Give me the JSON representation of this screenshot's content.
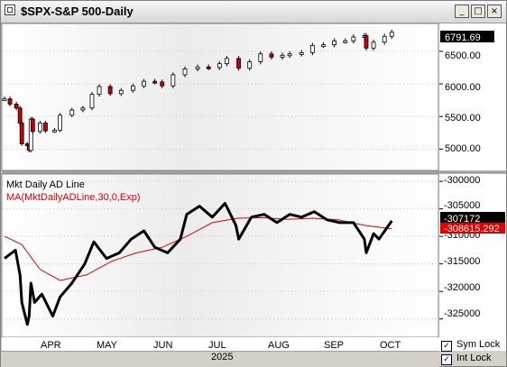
{
  "window": {
    "title": "$SPX-S&P 500-Daily",
    "buttons": {
      "minimize": "_",
      "maximize": "□",
      "close": "×"
    }
  },
  "price_pane": {
    "y_ticks": [
      "6500.00",
      "6000.00",
      "5500.00",
      "5000.00"
    ],
    "last_price_label": "6791.69"
  },
  "indicator_pane": {
    "title": "Mkt Daily AD Line",
    "ma_label": "MA(MktDailyADLine,30,0,Exp)",
    "y_ticks": [
      "-300000",
      "-305000",
      "-310000",
      "-315000",
      "-320000",
      "-325000"
    ],
    "value_label": "-307172",
    "ma_value_label": "-308615.292"
  },
  "x_axis": {
    "months": [
      "APR",
      "MAY",
      "JUN",
      "JUL",
      "AUG",
      "SEP",
      "OCT"
    ],
    "year": "2025"
  },
  "locks": [
    {
      "label": "Sym Lock",
      "checked": true
    },
    {
      "label": "Int Lock",
      "checked": true
    }
  ],
  "colors": {
    "up": "#ffffff",
    "down": "#cc0000",
    "ad_line": "#000000",
    "ma_line": "#e00000",
    "price_tag": "#000000",
    "ma_tag": "#e00000"
  },
  "chart_data": [
    {
      "type": "candlestick",
      "title": "$SPX-S&P 500-Daily",
      "ylim": [
        4700,
        6900
      ],
      "x": [
        "Mar-25",
        "Mar-28",
        "Apr-01",
        "Apr-03",
        "Apr-04",
        "Apr-07",
        "Apr-08",
        "Apr-09",
        "Apr-10",
        "Apr-14",
        "Apr-17",
        "Apr-22",
        "Apr-25",
        "May-01",
        "May-07",
        "May-12",
        "May-16",
        "May-22",
        "May-28",
        "Jun-04",
        "Jun-10",
        "Jun-16",
        "Jun-20",
        "Jun-26",
        "Jul-02",
        "Jul-09",
        "Jul-15",
        "Jul-21",
        "Jul-25",
        "Aug-01",
        "Aug-07",
        "Aug-13",
        "Aug-19",
        "Aug-25",
        "Aug-29",
        "Sep-05",
        "Sep-11",
        "Sep-17",
        "Sep-23",
        "Sep-29",
        "Oct-03",
        "Oct-09",
        "Oct-10",
        "Oct-14",
        "Oct-20",
        "Oct-24"
      ],
      "close": [
        5770,
        5690,
        5630,
        5400,
        5080,
        5060,
        4980,
        5460,
        5270,
        5400,
        5280,
        5290,
        5520,
        5600,
        5630,
        5840,
        5960,
        5850,
        5900,
        5970,
        6040,
        6030,
        5970,
        6140,
        6230,
        6260,
        6250,
        6310,
        6390,
        6240,
        6340,
        6460,
        6410,
        6440,
        6460,
        6480,
        6590,
        6600,
        6660,
        6660,
        6720,
        6740,
        6550,
        6640,
        6730,
        6792
      ]
    },
    {
      "type": "line",
      "title": "Mkt Daily AD Line",
      "ylim": [
        -328000,
        -299000
      ],
      "series": [
        {
          "name": "Mkt Daily AD Line",
          "x": [
            "Mar-25",
            "Mar-31",
            "Apr-03",
            "Apr-04",
            "Apr-07",
            "Apr-08",
            "Apr-09",
            "Apr-11",
            "Apr-15",
            "Apr-21",
            "Apr-25",
            "May-01",
            "May-08",
            "May-13",
            "May-20",
            "May-27",
            "Jun-03",
            "Jun-10",
            "Jun-16",
            "Jun-23",
            "Jun-30",
            "Jul-03",
            "Jul-10",
            "Jul-17",
            "Jul-24",
            "Jul-30",
            "Aug-01",
            "Aug-08",
            "Aug-15",
            "Aug-22",
            "Aug-29",
            "Sep-05",
            "Sep-12",
            "Sep-19",
            "Sep-26",
            "Oct-03",
            "Oct-09",
            "Oct-10",
            "Oct-14",
            "Oct-17",
            "Oct-24"
          ],
          "values": [
            -314000,
            -312500,
            -317000,
            -322000,
            -326000,
            -324500,
            -318500,
            -322000,
            -320500,
            -324500,
            -321000,
            -318500,
            -315000,
            -311000,
            -314000,
            -313000,
            -310500,
            -309000,
            -312000,
            -313000,
            -310500,
            -306000,
            -304500,
            -306500,
            -304000,
            -308000,
            -310500,
            -306500,
            -306000,
            -307500,
            -306000,
            -306500,
            -305500,
            -307000,
            -307500,
            -307500,
            -310500,
            -313000,
            -309500,
            -310500,
            -307172
          ]
        },
        {
          "name": "MA(MktDailyADLine,30,0,Exp)",
          "x": [
            "Mar-25",
            "Apr-04",
            "Apr-14",
            "Apr-25",
            "May-09",
            "May-23",
            "Jun-06",
            "Jun-20",
            "Jul-03",
            "Jul-17",
            "Jul-31",
            "Aug-14",
            "Aug-28",
            "Sep-11",
            "Sep-25",
            "Oct-09",
            "Oct-24"
          ],
          "values": [
            -310000,
            -311500,
            -316000,
            -318000,
            -317000,
            -314500,
            -313000,
            -312000,
            -310000,
            -307500,
            -306700,
            -306600,
            -306900,
            -306700,
            -307000,
            -308000,
            -308615
          ]
        }
      ]
    }
  ]
}
